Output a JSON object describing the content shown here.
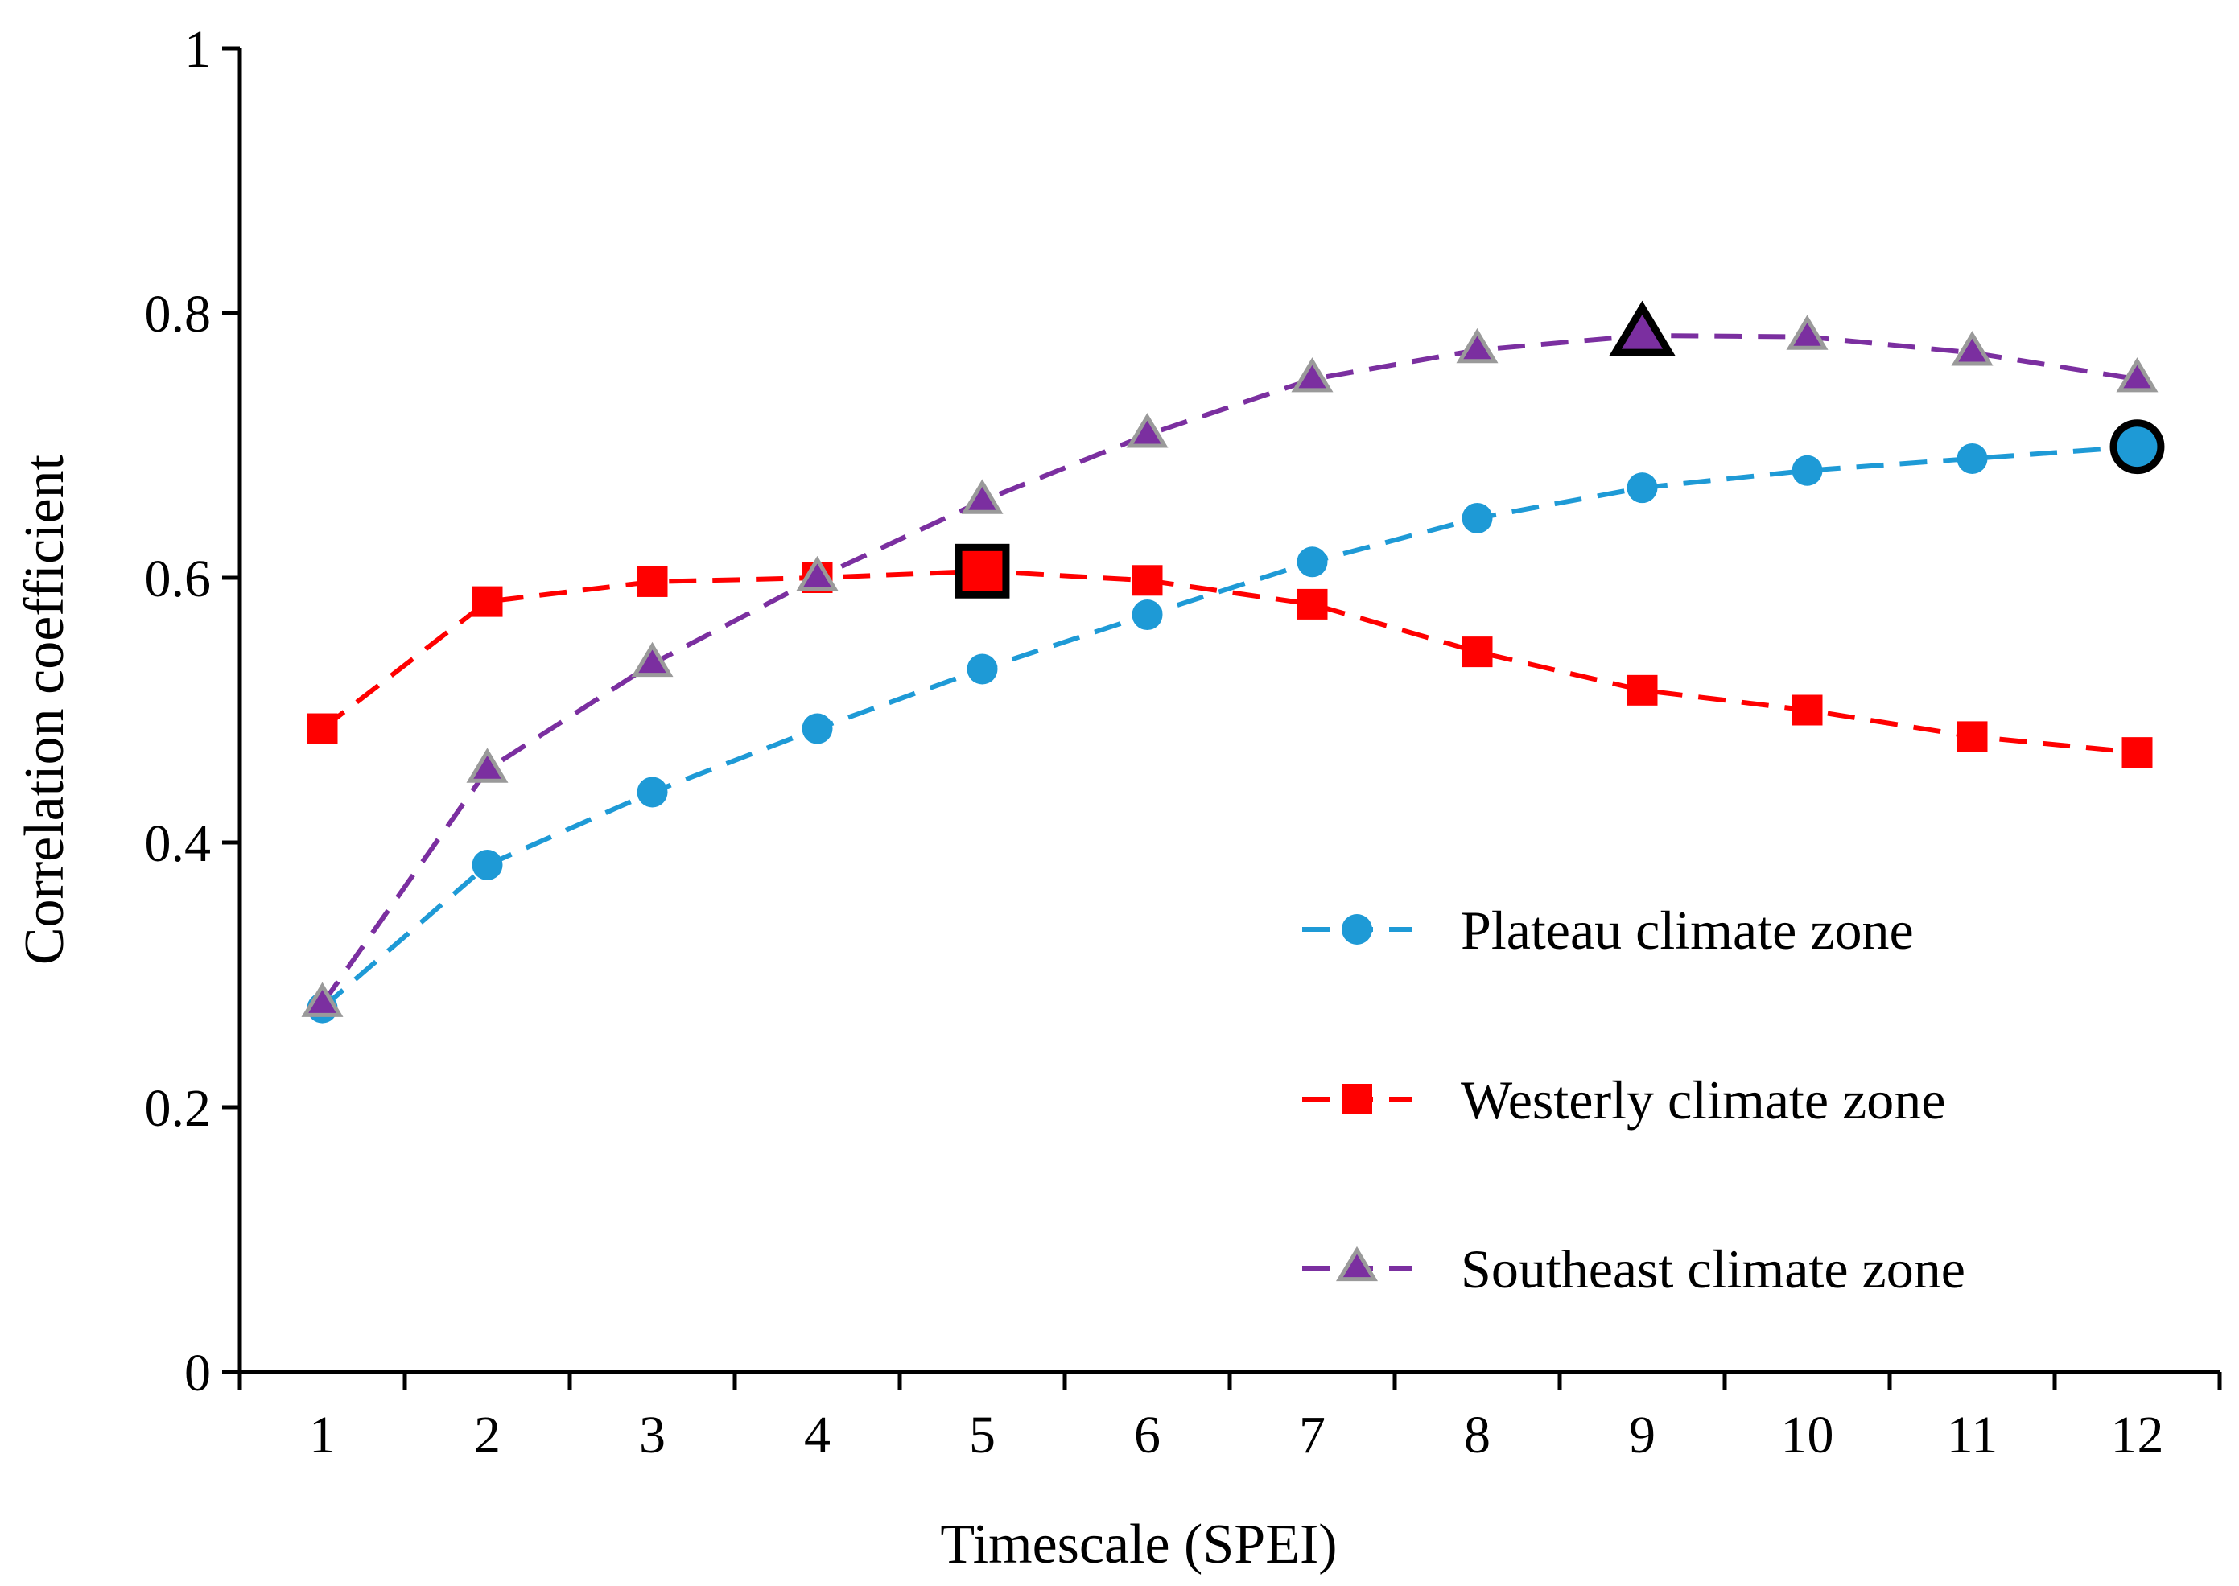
{
  "chart_data": {
    "type": "line",
    "title": "",
    "xlabel": "Timescale (SPEI)",
    "ylabel": "Correlation coefficient",
    "x": [
      1,
      2,
      3,
      4,
      5,
      6,
      7,
      8,
      9,
      10,
      11,
      12
    ],
    "xlim": [
      0.5,
      12.5
    ],
    "ylim": [
      0,
      1
    ],
    "x_tick_labels": [
      "1",
      "2",
      "3",
      "4",
      "5",
      "6",
      "7",
      "8",
      "9",
      "10",
      "11",
      "12"
    ],
    "y_ticks": [
      0,
      0.2,
      0.4,
      0.6,
      0.8,
      1
    ],
    "y_tick_labels": [
      "0",
      "0.2",
      "0.4",
      "0.6",
      "0.8",
      "1"
    ],
    "grid": false,
    "legend_position": "lower-right",
    "series": [
      {
        "name": "Plateau climate zone",
        "marker": "circle",
        "color": "#1e9ad6",
        "values": [
          0.275,
          0.383,
          0.438,
          0.486,
          0.531,
          0.572,
          0.612,
          0.645,
          0.668,
          0.681,
          0.69,
          0.699
        ],
        "max_index": 11
      },
      {
        "name": "Westerly climate zone",
        "marker": "square",
        "color": "#ff0000",
        "values": [
          0.486,
          0.582,
          0.597,
          0.6,
          0.605,
          0.598,
          0.58,
          0.544,
          0.515,
          0.5,
          0.48,
          0.468
        ],
        "max_index": 4
      },
      {
        "name": "Southeast climate zone",
        "marker": "triangle",
        "color": "#7b2fa0",
        "values": [
          0.278,
          0.455,
          0.535,
          0.6,
          0.658,
          0.708,
          0.75,
          0.772,
          0.783,
          0.782,
          0.77,
          0.75
        ],
        "max_index": 8
      }
    ]
  }
}
